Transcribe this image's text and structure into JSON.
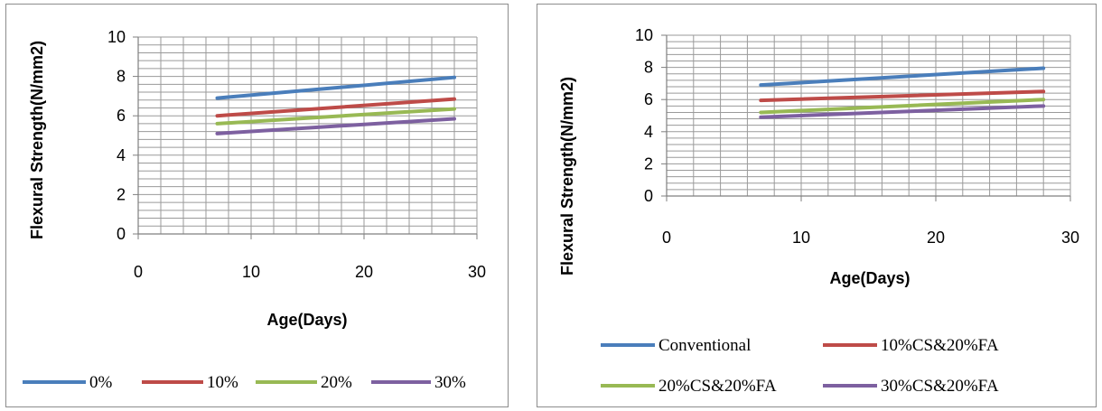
{
  "chart_data": [
    {
      "type": "line",
      "xlabel": "Age(Days)",
      "ylabel": "Flexural Strength(N/mm2)",
      "xlim": [
        0,
        30
      ],
      "ylim": [
        0,
        10
      ],
      "xticks": [
        "0",
        "10",
        "20",
        "30"
      ],
      "yticks": [
        "0",
        "2",
        "4",
        "6",
        "8",
        "10"
      ],
      "grid": true,
      "legend_position": "bottom",
      "series": [
        {
          "name": "0%",
          "color": "#4a7ebb",
          "x": [
            7,
            28
          ],
          "y": [
            6.9,
            7.95
          ]
        },
        {
          "name": "10%",
          "color": "#be4b48",
          "x": [
            7,
            28
          ],
          "y": [
            6.0,
            6.85
          ]
        },
        {
          "name": "20%",
          "color": "#98b954",
          "x": [
            7,
            28
          ],
          "y": [
            5.6,
            6.35
          ]
        },
        {
          "name": "30%",
          "color": "#7d60a0",
          "x": [
            7,
            28
          ],
          "y": [
            5.1,
            5.85
          ]
        }
      ]
    },
    {
      "type": "line",
      "xlabel": "Age(Days)",
      "ylabel": "Flexural Strength(N/mm2)",
      "xlim": [
        0,
        30
      ],
      "ylim": [
        0,
        10
      ],
      "xticks": [
        "0",
        "10",
        "20",
        "30"
      ],
      "yticks": [
        "0",
        "2",
        "4",
        "6",
        "8",
        "10"
      ],
      "grid": true,
      "legend_position": "bottom",
      "series": [
        {
          "name": "Conventional",
          "color": "#4a7ebb",
          "x": [
            7,
            28
          ],
          "y": [
            6.9,
            7.95
          ]
        },
        {
          "name": "10%CS&20%FA",
          "color": "#be4b48",
          "x": [
            7,
            28
          ],
          "y": [
            5.95,
            6.5
          ]
        },
        {
          "name": "20%CS&20%FA",
          "color": "#98b954",
          "x": [
            7,
            28
          ],
          "y": [
            5.2,
            6.0
          ]
        },
        {
          "name": "30%CS&20%FA",
          "color": "#7d60a0",
          "x": [
            7,
            28
          ],
          "y": [
            4.9,
            5.6
          ]
        }
      ]
    }
  ]
}
